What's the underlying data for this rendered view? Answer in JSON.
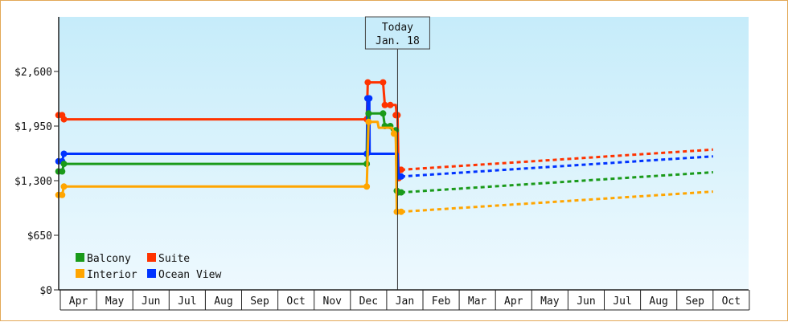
{
  "chart_data": {
    "type": "line",
    "title": "",
    "xlabel": "",
    "ylabel": "",
    "ylim": [
      0,
      3250
    ],
    "yticks": [
      {
        "value": 0,
        "label": "$0"
      },
      {
        "value": 650,
        "label": "$650"
      },
      {
        "value": 1300,
        "label": "$1,300"
      },
      {
        "value": 1950,
        "label": "$1,950"
      },
      {
        "value": 2600,
        "label": "$2,600"
      }
    ],
    "months": [
      "Apr",
      "May",
      "Jun",
      "Jul",
      "Aug",
      "Sep",
      "Oct",
      "Nov",
      "Dec",
      "Jan",
      "Feb",
      "Mar",
      "Apr",
      "May",
      "Jun",
      "Jul",
      "Aug",
      "Sep",
      "Oct"
    ],
    "today": {
      "line1": "Today",
      "line2": "Jan. 18",
      "x": 9.3
    },
    "legend": {
      "placement": "bottom-left",
      "items": [
        {
          "label": "Balcony",
          "color": "#1a9a1a"
        },
        {
          "label": "Suite",
          "color": "#ff3300"
        },
        {
          "label": "Interior",
          "color": "#ffa500"
        },
        {
          "label": "Ocean View",
          "color": "#0033ff"
        }
      ]
    },
    "series": [
      {
        "color": "#ff3300",
        "history": [
          [
            -0.05,
            2080
          ],
          [
            0.05,
            2080
          ],
          [
            0.1,
            2030
          ],
          [
            8.45,
            2030
          ],
          [
            8.48,
            2470
          ],
          [
            8.9,
            2470
          ],
          [
            8.95,
            2200
          ],
          [
            9.25,
            2200
          ],
          [
            9.28,
            2080
          ],
          [
            9.3,
            2080
          ],
          [
            9.33,
            1330
          ],
          [
            9.36,
            1430
          ],
          [
            9.4,
            1430
          ]
        ],
        "points": [
          [
            -0.05,
            2080
          ],
          [
            0.05,
            2080
          ],
          [
            0.1,
            2030
          ],
          [
            8.45,
            2030
          ],
          [
            8.48,
            2470
          ],
          [
            8.9,
            2470
          ],
          [
            8.95,
            2200
          ],
          [
            9.1,
            2200
          ],
          [
            9.25,
            2080
          ],
          [
            9.3,
            2080
          ],
          [
            9.33,
            1330
          ],
          [
            9.4,
            1430
          ]
        ],
        "forecast": [
          [
            9.4,
            1430
          ],
          [
            18.0,
            1670
          ]
        ]
      },
      {
        "color": "#0033ff",
        "history": [
          [
            -0.05,
            1530
          ],
          [
            0.05,
            1530
          ],
          [
            0.1,
            1620
          ],
          [
            8.45,
            1620
          ],
          [
            8.47,
            2280
          ],
          [
            8.52,
            2280
          ],
          [
            8.53,
            1620
          ],
          [
            9.3,
            1620
          ],
          [
            9.33,
            1350
          ],
          [
            9.4,
            1350
          ]
        ],
        "points": [
          [
            -0.05,
            1530
          ],
          [
            0.05,
            1530
          ],
          [
            0.1,
            1620
          ],
          [
            8.45,
            1620
          ],
          [
            8.47,
            2280
          ],
          [
            8.52,
            2280
          ],
          [
            9.33,
            1350
          ],
          [
            9.4,
            1350
          ]
        ],
        "forecast": [
          [
            9.4,
            1350
          ],
          [
            18.0,
            1590
          ]
        ]
      },
      {
        "color": "#1a9a1a",
        "history": [
          [
            -0.05,
            1410
          ],
          [
            0.05,
            1410
          ],
          [
            0.1,
            1500
          ],
          [
            8.45,
            1500
          ],
          [
            8.5,
            2100
          ],
          [
            8.9,
            2100
          ],
          [
            8.95,
            1950
          ],
          [
            9.1,
            1950
          ],
          [
            9.15,
            1900
          ],
          [
            9.25,
            1900
          ],
          [
            9.28,
            1180
          ],
          [
            9.32,
            1160
          ],
          [
            9.4,
            1160
          ]
        ],
        "points": [
          [
            -0.05,
            1410
          ],
          [
            0.05,
            1410
          ],
          [
            0.1,
            1500
          ],
          [
            8.45,
            1500
          ],
          [
            8.5,
            2100
          ],
          [
            8.9,
            2100
          ],
          [
            8.95,
            1950
          ],
          [
            9.1,
            1950
          ],
          [
            9.25,
            1900
          ],
          [
            9.28,
            1180
          ],
          [
            9.32,
            1160
          ],
          [
            9.4,
            1160
          ]
        ],
        "forecast": [
          [
            9.4,
            1160
          ],
          [
            18.0,
            1400
          ]
        ]
      },
      {
        "color": "#ffa500",
        "history": [
          [
            -0.05,
            1130
          ],
          [
            0.05,
            1130
          ],
          [
            0.1,
            1230
          ],
          [
            8.45,
            1230
          ],
          [
            8.5,
            2000
          ],
          [
            8.75,
            2000
          ],
          [
            8.78,
            1930
          ],
          [
            9.15,
            1930
          ],
          [
            9.2,
            1860
          ],
          [
            9.25,
            1860
          ],
          [
            9.28,
            930
          ],
          [
            9.4,
            930
          ]
        ],
        "points": [
          [
            -0.05,
            1130
          ],
          [
            0.05,
            1130
          ],
          [
            0.1,
            1230
          ],
          [
            8.45,
            1230
          ],
          [
            8.5,
            2000
          ],
          [
            9.2,
            1860
          ],
          [
            9.28,
            930
          ],
          [
            9.4,
            930
          ]
        ],
        "forecast": [
          [
            9.4,
            930
          ],
          [
            18.0,
            1170
          ]
        ]
      }
    ]
  }
}
